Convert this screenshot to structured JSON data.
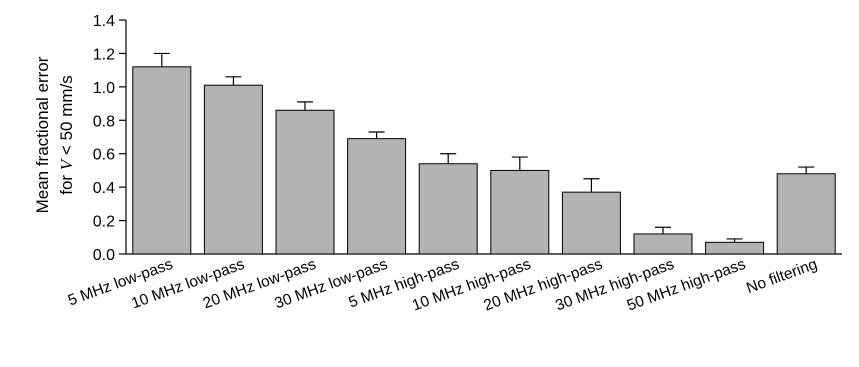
{
  "chart_data": {
    "type": "bar",
    "ylabel_line1": "Mean fractional error",
    "ylabel_line2_prefix": "for ",
    "ylabel_line2_var": "V",
    "ylabel_line2_suffix": " < 50 mm/s",
    "ylim": [
      0,
      1.4
    ],
    "yticks": [
      "0.0",
      "0.2",
      "0.4",
      "0.6",
      "0.8",
      "1.0",
      "1.2",
      "1.4"
    ],
    "categories": [
      "5 MHz low-pass",
      "10 MHz low-pass",
      "20 MHz low-pass",
      "30 MHz low-pass",
      "5 MHz high-pass",
      "10 MHz high-pass",
      "20 MHz high-pass",
      "30 MHz high-pass",
      "50 MHz high-pass",
      "No filtering"
    ],
    "values": [
      1.12,
      1.01,
      0.86,
      0.69,
      0.54,
      0.5,
      0.37,
      0.12,
      0.07,
      0.48
    ],
    "errors": [
      0.08,
      0.05,
      0.05,
      0.04,
      0.06,
      0.08,
      0.08,
      0.04,
      0.02,
      0.04
    ],
    "grid": false,
    "bar_color": "#b3b3b3",
    "edge_color": "#000000"
  }
}
